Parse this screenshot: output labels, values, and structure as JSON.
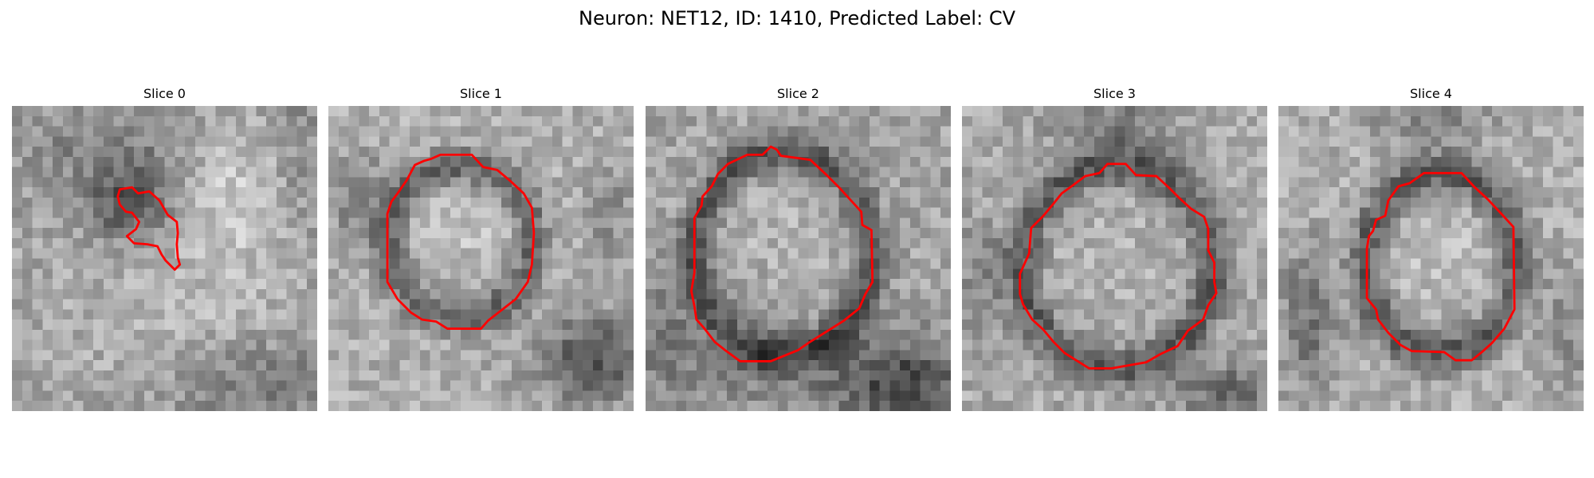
{
  "figure": {
    "title": "Neuron: NET12, ID: 1410, Predicted Label: CV"
  },
  "panels": [
    {
      "title": "Slice 0"
    },
    {
      "title": "Slice 1"
    },
    {
      "title": "Slice 2"
    },
    {
      "title": "Slice 3"
    },
    {
      "title": "Slice 4"
    }
  ],
  "colors": {
    "contour": "#ff0000",
    "background": "#ffffff"
  }
}
